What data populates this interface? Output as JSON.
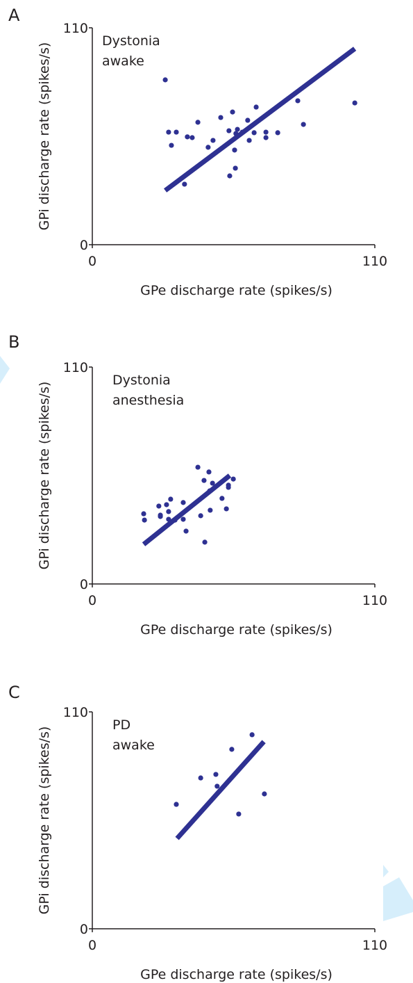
{
  "chart_data": [
    {
      "type": "scatter",
      "panel_label": "A",
      "annotation": [
        "Dystonia",
        "awake"
      ],
      "x_label": "GPe discharge rate (spikes/s)",
      "y_label": "GPi discharge rate (spikes/s)",
      "xlim": [
        0,
        110
      ],
      "ylim": [
        0,
        110
      ],
      "xticks": [
        0,
        110
      ],
      "yticks": [
        0,
        110
      ],
      "series": [
        {
          "kind": "scatter",
          "color": "#2e3192",
          "x": [
            28.4,
            29.7,
            32.7,
            30.8,
            37.0,
            38.9,
            41.1,
            45.1,
            47.0,
            50.0,
            35.9,
            53.2,
            54.6,
            56.5,
            55.9,
            55.4,
            55.7,
            53.5,
            58.4,
            60.5,
            61.1,
            63.0,
            63.8,
            67.6,
            67.6,
            72.2,
            80.0,
            82.2,
            102.2
          ],
          "values": [
            83.6,
            57.1,
            57.1,
            50.4,
            54.7,
            54.3,
            62.1,
            49.4,
            52.9,
            64.5,
            30.7,
            57.8,
            67.3,
            58.5,
            56.4,
            48.0,
            38.8,
            34.9,
            57.1,
            63.1,
            52.9,
            56.8,
            69.8,
            57.1,
            54.3,
            56.8,
            73.0,
            61.0,
            71.9
          ]
        },
        {
          "kind": "line",
          "color": "#2e3192",
          "x": [
            28.4,
            102.2
          ],
          "values": [
            27.5,
            99.4
          ]
        }
      ]
    },
    {
      "type": "scatter",
      "panel_label": "B",
      "annotation": [
        "Dystonia",
        "anesthesia"
      ],
      "x_label": "GPe discharge rate (spikes/s)",
      "y_label": "GPi discharge rate (spikes/s)",
      "xlim": [
        0,
        110
      ],
      "ylim": [
        0,
        110
      ],
      "xticks": [
        0,
        110
      ],
      "yticks": [
        0,
        110
      ],
      "series": [
        {
          "kind": "scatter",
          "color": "#2e3192",
          "x": [
            20.0,
            20.3,
            25.9,
            26.5,
            26.5,
            28.9,
            29.7,
            30.5,
            29.7,
            32.2,
            35.4,
            35.4,
            36.5,
            41.1,
            42.2,
            43.5,
            43.8,
            45.4,
            45.9,
            46.8,
            45.7,
            50.5,
            52.2,
            53.0,
            53.0,
            54.9
          ],
          "values": [
            35.6,
            32.4,
            39.5,
            34.9,
            34.2,
            40.2,
            36.7,
            43.0,
            32.8,
            32.4,
            41.3,
            32.8,
            26.8,
            59.2,
            34.6,
            52.5,
            21.2,
            56.8,
            37.4,
            51.1,
            47.2,
            43.4,
            38.1,
            50.1,
            49.0,
            53.2
          ]
        },
        {
          "kind": "line",
          "color": "#2e3192",
          "x": [
            20.0,
            53.5
          ],
          "values": [
            20.1,
            55.0
          ]
        }
      ]
    },
    {
      "type": "scatter",
      "panel_label": "C",
      "annotation": [
        "PD",
        "awake"
      ],
      "x_label": "GPe discharge rate (spikes/s)",
      "y_label": "GPi discharge rate (spikes/s)",
      "xlim": [
        0,
        110
      ],
      "ylim": [
        0,
        110
      ],
      "xticks": [
        0,
        110
      ],
      "yticks": [
        0,
        110
      ],
      "series": [
        {
          "kind": "scatter",
          "color": "#2e3192",
          "x": [
            32.7,
            42.2,
            48.1,
            48.6,
            54.3,
            57.0,
            62.2,
            67.0
          ],
          "values": [
            63.1,
            76.5,
            78.3,
            72.3,
            91.0,
            58.2,
            98.4,
            68.4
          ]
        },
        {
          "kind": "line",
          "color": "#2e3192",
          "x": [
            33.0,
            66.8
          ],
          "values": [
            45.8,
            94.9
          ]
        }
      ]
    }
  ]
}
